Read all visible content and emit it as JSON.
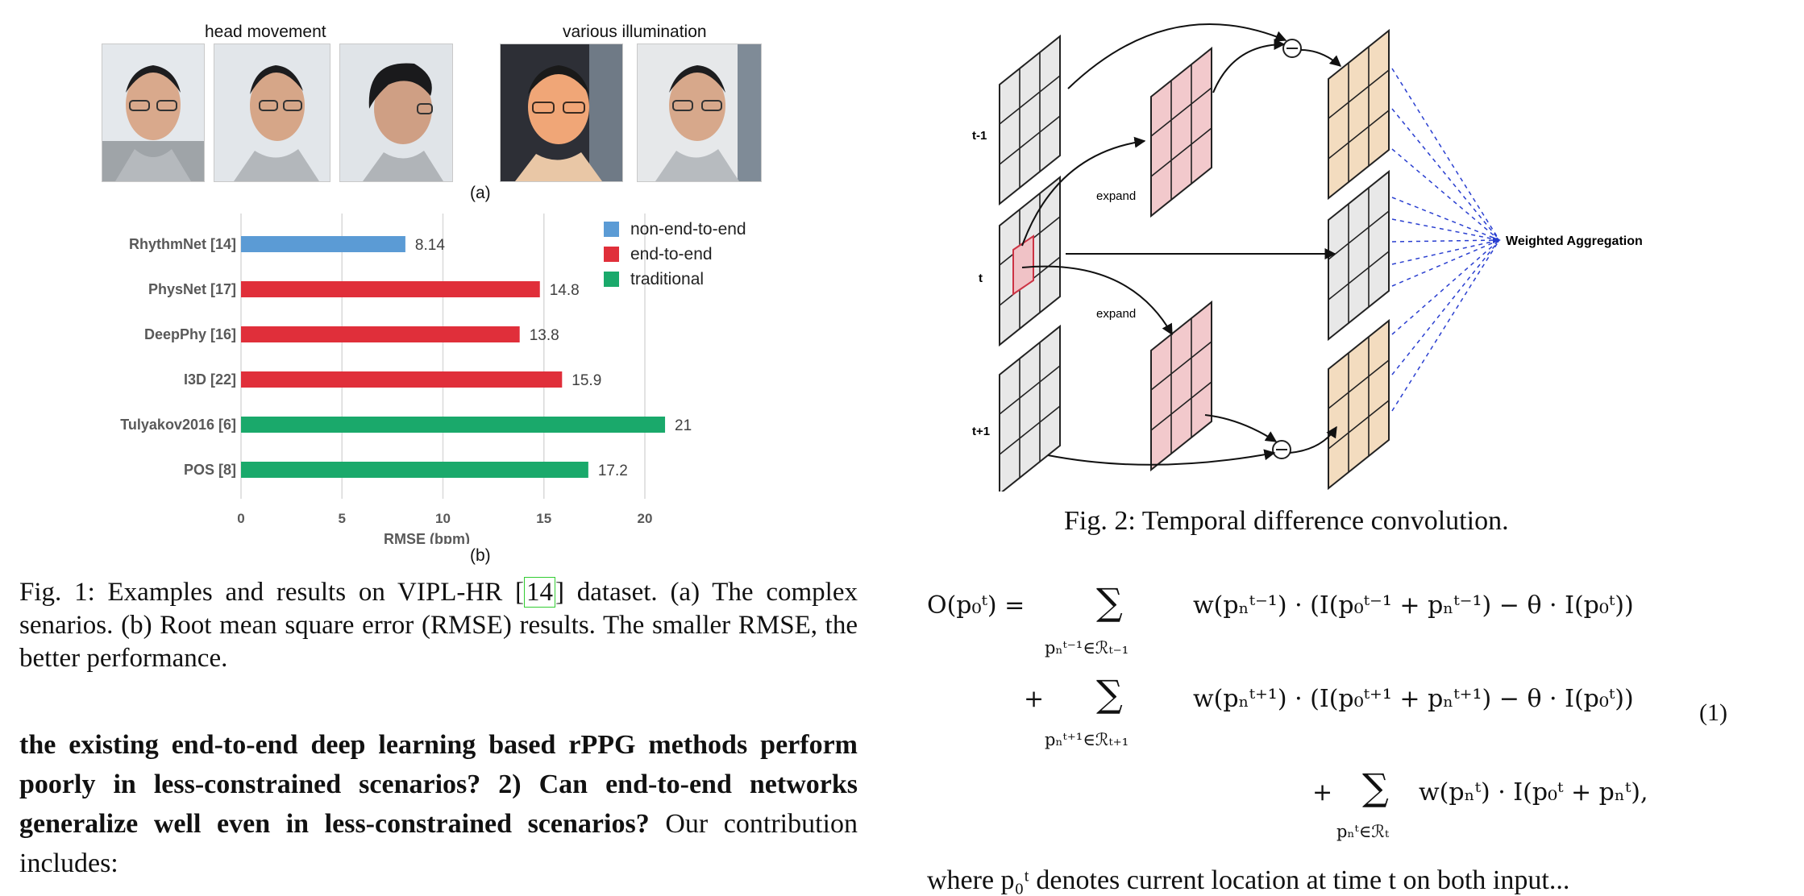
{
  "fig1": {
    "group_labels": {
      "head_movement": "head movement",
      "various_illumination": "various illumination"
    },
    "panel_a": "(a)",
    "panel_b": "(b)",
    "photos": [
      {
        "name": "face-frontal"
      },
      {
        "name": "face-turned"
      },
      {
        "name": "face-profile"
      },
      {
        "name": "face-bright-light"
      },
      {
        "name": "face-normal-light"
      }
    ],
    "caption": {
      "prefix": "Fig. 1: Examples and results on VIPL-HR [",
      "cite": "14",
      "suffix": "] dataset. (a) The complex senarios. (b) Root mean square error (RMSE) results. The smaller RMSE, the better performance."
    }
  },
  "chart_data": {
    "type": "bar",
    "orientation": "horizontal",
    "categories": [
      "RhythmNet [14]",
      "PhysNet [17]",
      "DeepPhy [16]",
      "I3D [22]",
      "Tulyakov2016 [6]",
      "POS [8]"
    ],
    "values": [
      8.14,
      14.8,
      13.8,
      15.9,
      21,
      17.2
    ],
    "value_labels": [
      "8.14",
      "14.8",
      "13.8",
      "15.9",
      "21",
      "17.2"
    ],
    "groups": [
      "non-end-to-end",
      "end-to-end",
      "end-to-end",
      "end-to-end",
      "traditional",
      "traditional"
    ],
    "xlabel": "RMSE (bpm)",
    "xlim": [
      0,
      20
    ],
    "xticks": [
      "0",
      "5",
      "10",
      "15",
      "20"
    ],
    "grid": "vertical",
    "legend": [
      {
        "label": "non-end-to-end",
        "color": "#5b9bd5"
      },
      {
        "label": "end-to-end",
        "color": "#e02f3a"
      },
      {
        "label": "traditional",
        "color": "#1aa96b"
      }
    ],
    "legend_position": "top-right"
  },
  "fig2": {
    "row_labels": [
      "t-1",
      "t",
      "t+1"
    ],
    "expand_labels": [
      "expand",
      "expand"
    ],
    "aggregation_label": "Weighted Aggregation",
    "minus_symbol": "−",
    "caption": "Fig. 2: Temporal difference convolution."
  },
  "body_text": {
    "bold": "the existing end-to-end deep learning based rPPG methods perform poorly in less-constrained scenarios? 2) Can end-to-end networks generalize well even in less-constrained scenarios?",
    "normal": " Our contribution includes:"
  },
  "equation": {
    "number": "(1)",
    "line1_lhs": "O(p₀ᵗ) =",
    "line1_sub": "pₙᵗ⁻¹∈ℛₜ₋₁",
    "line1_body": "w(pₙᵗ⁻¹) · (I(p₀ᵗ⁻¹ + pₙᵗ⁻¹) − θ · I(p₀ᵗ))",
    "line2_plus": "+",
    "line2_sub": "pₙᵗ⁺¹∈ℛₜ₊₁",
    "line2_body": "w(pₙᵗ⁺¹) · (I(p₀ᵗ⁺¹ + pₙᵗ⁺¹) − θ · I(p₀ᵗ))",
    "line3_plus": "+",
    "line3_sub": "pₙᵗ∈ℛₜ",
    "line3_body": "w(pₙᵗ) · I(p₀ᵗ + pₙᵗ),",
    "sum_symbol": "∑"
  },
  "cut_line": "where p₀ᵗ denotes current location at time t on both input..."
}
